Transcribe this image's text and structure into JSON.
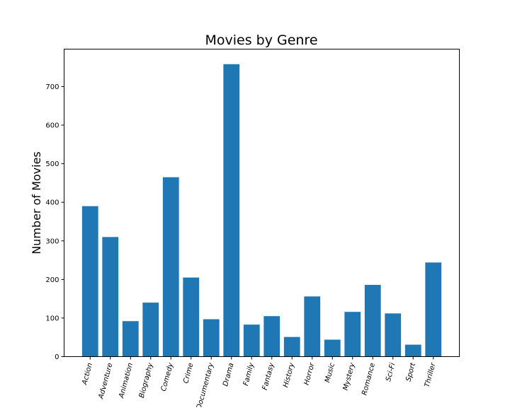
{
  "chart_data": {
    "type": "bar",
    "title": "Movies by Genre",
    "xlabel": "",
    "ylabel": "Number of Movies",
    "categories": [
      "Action",
      "Adventure",
      "Animation",
      "Biography",
      "Comedy",
      "Crime",
      "Documentary",
      "Drama",
      "Family",
      "Fantasy",
      "History",
      "Horror",
      "Music",
      "Mystery",
      "Romance",
      "Sci-Fi",
      "Sport",
      "Thriller"
    ],
    "values": [
      390,
      310,
      92,
      140,
      465,
      205,
      97,
      758,
      83,
      105,
      51,
      156,
      44,
      116,
      186,
      112,
      31,
      244
    ],
    "yticks": [
      0,
      100,
      200,
      300,
      400,
      500,
      600,
      700
    ],
    "ylim": [
      0,
      797
    ],
    "bar_color": "#1f77b4",
    "grid": false,
    "legend": "none",
    "xtick_rotation_deg": -75
  }
}
